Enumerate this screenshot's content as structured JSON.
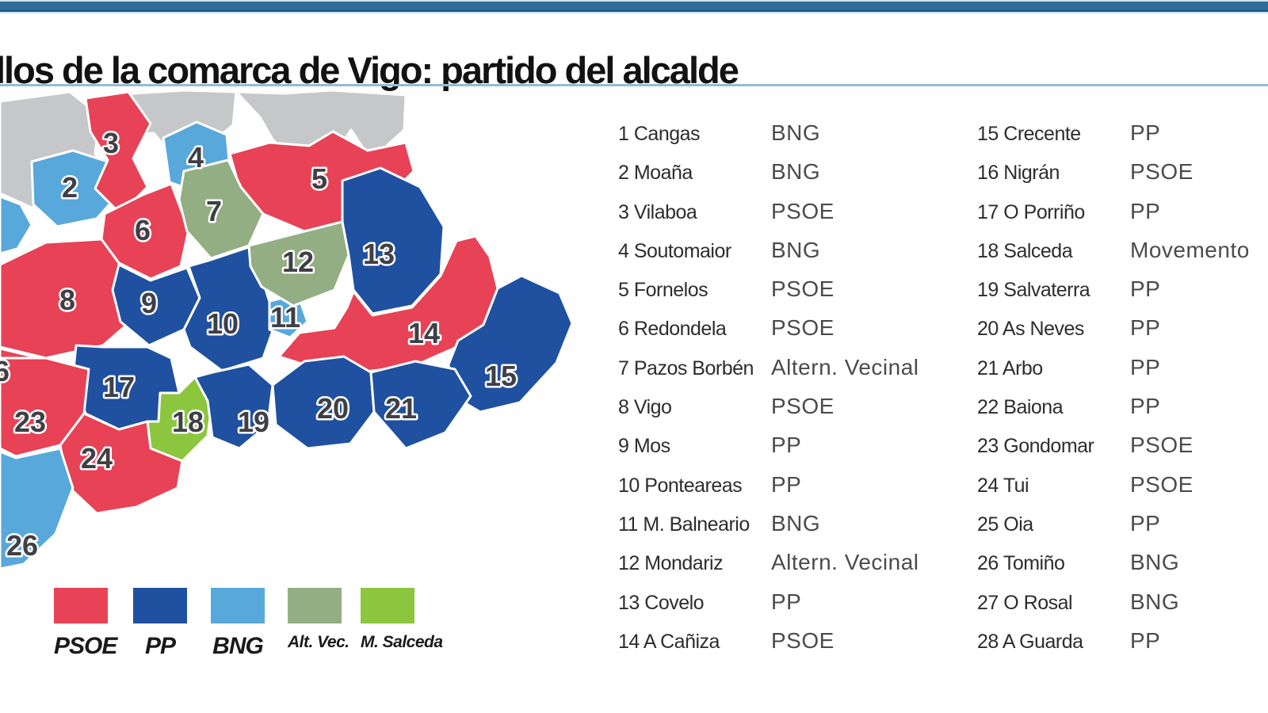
{
  "header": {
    "title": "llos de la comarca de Vigo: partido del alcalde",
    "top_bar_color": "#2e6d98",
    "rule_color": "#93bcd4"
  },
  "legend": {
    "items": [
      {
        "label": "PSOE",
        "party_key": "PSOE",
        "color": "#e74256"
      },
      {
        "label": "PP",
        "party_key": "PP",
        "color": "#1f51a0"
      },
      {
        "label": "BNG",
        "party_key": "BNG",
        "color": "#58a8dc"
      },
      {
        "label": "Alt. Vec.",
        "party_key": "Altern. Vecinal",
        "color": "#94ae84"
      },
      {
        "label": "M. Salceda",
        "party_key": "Movemento",
        "color": "#8cc63e"
      }
    ]
  },
  "map": {
    "outside_color": "#c6c7c9",
    "border_color": "#ffffff",
    "number_color": "#3f3f46"
  },
  "municipalities": [
    {
      "num": "1",
      "name": "Cangas",
      "party": "BNG"
    },
    {
      "num": "2",
      "name": "Moaña",
      "party": "BNG"
    },
    {
      "num": "3",
      "name": "Vilaboa",
      "party": "PSOE"
    },
    {
      "num": "4",
      "name": "Soutomaior",
      "party": "BNG"
    },
    {
      "num": "5",
      "name": "Fornelos",
      "party": "PSOE"
    },
    {
      "num": "6",
      "name": "Redondela",
      "party": "PSOE"
    },
    {
      "num": "7",
      "name": "Pazos Borbén",
      "party": "Altern. Vecinal"
    },
    {
      "num": "8",
      "name": "Vigo",
      "party": "PSOE"
    },
    {
      "num": "9",
      "name": "Mos",
      "party": "PP"
    },
    {
      "num": "10",
      "name": "Ponteareas",
      "party": "PP"
    },
    {
      "num": "11",
      "name": "M. Balneario",
      "party": "BNG"
    },
    {
      "num": "12",
      "name": "Mondariz",
      "party": "Altern. Vecinal"
    },
    {
      "num": "13",
      "name": "Covelo",
      "party": "PP"
    },
    {
      "num": "14",
      "name": "A Cañiza",
      "party": "PSOE"
    },
    {
      "num": "15",
      "name": "Crecente",
      "party": "PP"
    },
    {
      "num": "16",
      "name": "Nigrán",
      "party": "PSOE"
    },
    {
      "num": "17",
      "name": "O Porriño",
      "party": "PP"
    },
    {
      "num": "18",
      "name": "Salceda",
      "party": "Movemento"
    },
    {
      "num": "19",
      "name": "Salvaterra",
      "party": "PP"
    },
    {
      "num": "20",
      "name": "As Neves",
      "party": "PP"
    },
    {
      "num": "21",
      "name": "Arbo",
      "party": "PP"
    },
    {
      "num": "22",
      "name": "Baiona",
      "party": "PP"
    },
    {
      "num": "23",
      "name": "Gondomar",
      "party": "PSOE"
    },
    {
      "num": "24",
      "name": "Tui",
      "party": "PSOE"
    },
    {
      "num": "25",
      "name": "Oia",
      "party": "PP"
    },
    {
      "num": "26",
      "name": "Tomiño",
      "party": "BNG"
    },
    {
      "num": "27",
      "name": "O Rosal",
      "party": "BNG"
    },
    {
      "num": "28",
      "name": "A Guarda",
      "party": "PP"
    }
  ]
}
